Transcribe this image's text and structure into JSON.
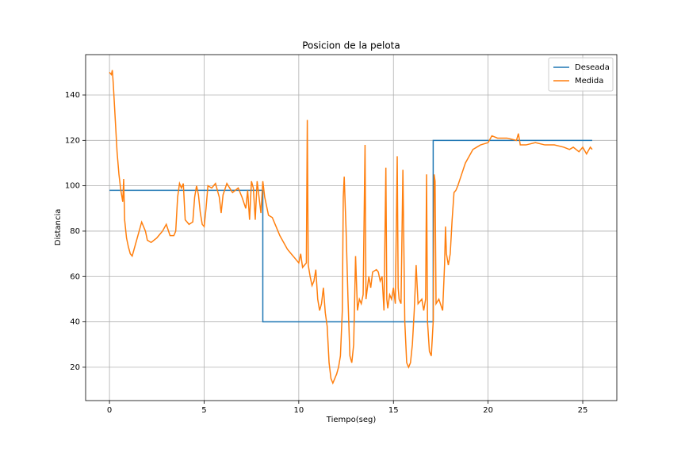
{
  "chart_data": {
    "type": "line",
    "title": "Posicion de la pelota",
    "x_label": "Tiempo(seg)",
    "y_label": "Distancia",
    "xlim": [
      -1.26,
      26.8
    ],
    "ylim": [
      5.3,
      157.8
    ],
    "xticks": [
      0,
      5,
      10,
      15,
      20,
      25
    ],
    "yticks": [
      20,
      40,
      60,
      80,
      100,
      120,
      140
    ],
    "grid": true,
    "legend": "upper right",
    "series": [
      {
        "name": "Deseada",
        "color": "#1f77b4",
        "x": [
          0,
          8.1,
          8.1,
          17.1,
          17.1,
          25.5
        ],
        "values": [
          98,
          98,
          40,
          40,
          120,
          120
        ]
      },
      {
        "name": "Medida",
        "color": "#ff7f0e",
        "x": [
          0,
          0.1,
          0.15,
          0.2,
          0.3,
          0.4,
          0.5,
          0.6,
          0.7,
          0.75,
          0.8,
          0.9,
          1.0,
          1.1,
          1.2,
          1.3,
          1.5,
          1.7,
          1.9,
          2.0,
          2.2,
          2.5,
          2.8,
          3.0,
          3.2,
          3.4,
          3.5,
          3.6,
          3.7,
          3.8,
          3.9,
          4.0,
          4.2,
          4.4,
          4.5,
          4.6,
          4.7,
          4.8,
          4.9,
          5.0,
          5.1,
          5.2,
          5.4,
          5.6,
          5.8,
          5.9,
          6.0,
          6.2,
          6.5,
          6.8,
          7.0,
          7.2,
          7.3,
          7.4,
          7.5,
          7.6,
          7.7,
          7.8,
          7.9,
          8.0,
          8.1,
          8.2,
          8.4,
          8.6,
          8.8,
          9.0,
          9.2,
          9.4,
          9.6,
          9.8,
          10.0,
          10.1,
          10.2,
          10.4,
          10.45,
          10.5,
          10.6,
          10.7,
          10.8,
          10.9,
          11.0,
          11.1,
          11.2,
          11.3,
          11.4,
          11.5,
          11.6,
          11.7,
          11.8,
          11.9,
          12.0,
          12.1,
          12.2,
          12.3,
          12.35,
          12.4,
          12.5,
          12.6,
          12.7,
          12.8,
          12.9,
          13.0,
          13.1,
          13.2,
          13.3,
          13.4,
          13.5,
          13.55,
          13.7,
          13.8,
          13.9,
          14.1,
          14.2,
          14.3,
          14.4,
          14.5,
          14.6,
          14.65,
          14.7,
          14.8,
          14.9,
          15.0,
          15.1,
          15.2,
          15.25,
          15.3,
          15.4,
          15.5,
          15.6,
          15.7,
          15.8,
          15.9,
          16.0,
          16.1,
          16.2,
          16.3,
          16.5,
          16.6,
          16.7,
          16.75,
          16.8,
          16.9,
          17.0,
          17.1,
          17.15,
          17.2,
          17.25,
          17.4,
          17.6,
          17.7,
          17.75,
          17.8,
          17.9,
          18.0,
          18.1,
          18.2,
          18.3,
          18.4,
          18.6,
          18.8,
          19.0,
          19.2,
          19.4,
          19.6,
          20.0,
          20.2,
          20.5,
          21.0,
          21.5,
          21.6,
          21.7,
          22.0,
          22.5,
          23.0,
          23.5,
          24.0,
          24.3,
          24.5,
          24.8,
          25.0,
          25.2,
          25.4,
          25.5
        ],
        "values": [
          150,
          149,
          151,
          145,
          130,
          115,
          105,
          98,
          93,
          103,
          85,
          77,
          73,
          70,
          69,
          72,
          78,
          84,
          80,
          76,
          75,
          77,
          80,
          83,
          78,
          78,
          80,
          95,
          101,
          99,
          101,
          85,
          83,
          84,
          95,
          100,
          96,
          88,
          83,
          82,
          90,
          100,
          99,
          101,
          95,
          88,
          96,
          101,
          97,
          99,
          95,
          90,
          98,
          85,
          102,
          99,
          85,
          102,
          95,
          88,
          102,
          95,
          87,
          86,
          82,
          78,
          75,
          72,
          70,
          68,
          66,
          70,
          64,
          66,
          129,
          65,
          60,
          56,
          58,
          63,
          50,
          45,
          48,
          55,
          44,
          38,
          22,
          15,
          13,
          15,
          17,
          20,
          25,
          45,
          95,
          104,
          80,
          50,
          25,
          22,
          30,
          69,
          45,
          50,
          48,
          52,
          118,
          50,
          60,
          55,
          62,
          63,
          62,
          58,
          60,
          45,
          108,
          50,
          46,
          52,
          50,
          55,
          48,
          113,
          55,
          50,
          48,
          107,
          40,
          22,
          20,
          22,
          30,
          45,
          65,
          48,
          50,
          45,
          50,
          105,
          40,
          27,
          25,
          40,
          105,
          102,
          48,
          50,
          45,
          65,
          82,
          70,
          65,
          70,
          85,
          97,
          98,
          100,
          105,
          110,
          113,
          116,
          117,
          118,
          119,
          122,
          121,
          121,
          120,
          123,
          118,
          118,
          119,
          118,
          118,
          117,
          116,
          117,
          115,
          117,
          114,
          117,
          116
        ]
      }
    ]
  }
}
